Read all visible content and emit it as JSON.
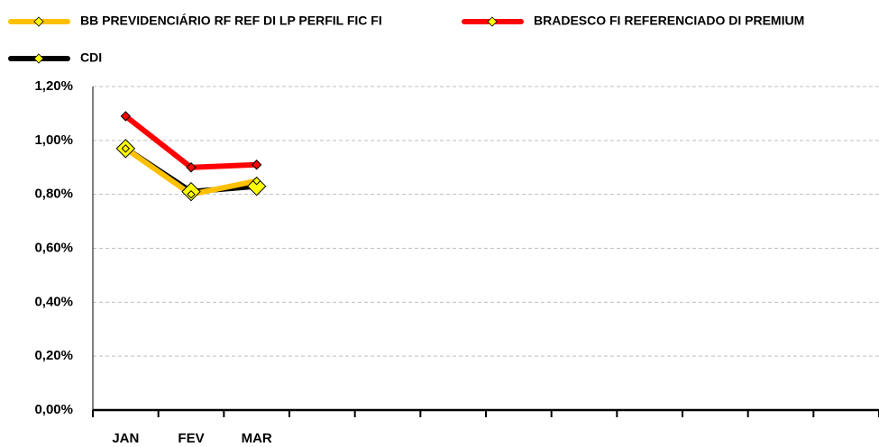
{
  "chart_data": {
    "type": "line",
    "categories": [
      "JAN",
      "FEV",
      "MAR",
      null,
      null,
      null,
      null,
      null,
      null,
      null,
      null,
      null
    ],
    "series": [
      {
        "name": "BB PREVIDENCIÁRIO RF REF DI LP PERFIL FIC FI",
        "color": "#FFC000",
        "values": [
          0.97,
          0.8,
          0.85,
          null,
          null,
          null,
          null,
          null,
          null,
          null,
          null,
          null
        ]
      },
      {
        "name": "BRADESCO FI REFERENCIADO DI PREMIUM",
        "color": "#FF0000",
        "values": [
          1.09,
          0.9,
          0.91,
          null,
          null,
          null,
          null,
          null,
          null,
          null,
          null,
          null
        ]
      },
      {
        "name": "CDI",
        "color": "#000000",
        "values": [
          0.97,
          0.81,
          0.83,
          null,
          null,
          null,
          null,
          null,
          null,
          null,
          null,
          null
        ]
      }
    ],
    "marker_color": "#FFFF00",
    "ylim": [
      0,
      1.2
    ],
    "yticks": [
      {
        "value": 0,
        "label": "0,00%"
      },
      {
        "value": 0.2,
        "label": "0,20%"
      },
      {
        "value": 0.4,
        "label": "0,40%"
      },
      {
        "value": 0.6,
        "label": "0,60%"
      },
      {
        "value": 0.8,
        "label": "0,80%"
      },
      {
        "value": 1.0,
        "label": "1,00%"
      },
      {
        "value": 1.2,
        "label": "1,20%"
      }
    ],
    "grid": true
  }
}
